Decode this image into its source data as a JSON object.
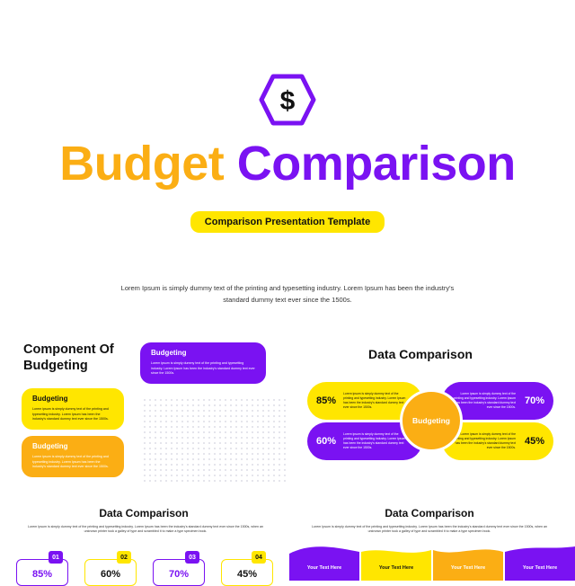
{
  "hero": {
    "icon": "dollar-hexagon-icon",
    "icon_glyph": "$",
    "title_word1": "Budget",
    "title_word2": "Comparison",
    "subtitle": "Comparison Presentation Template",
    "intro_line1": "Lorem Ipsum is simply dummy text of the printing and typesetting industry. Lorem Ipsum has been the industry's",
    "intro_line2": "standard dummy text ever since the 1500s."
  },
  "slide_component": {
    "title_line1": "Component Of",
    "title_line2": "Budgeting",
    "cards": [
      {
        "title": "Budgeting",
        "body": "Lorem ipsum is simply dummy text of the printing and typesetting industry. Lorem Ipsum has been the industry's standard dummy text ever since the 1500s."
      },
      {
        "title": "Budgeting",
        "body": "Lorem ipsum is simply dummy text of the printing and typesetting industry. Lorem Ipsum has been the industry's standard dummy text ever since the 1500s."
      },
      {
        "title": "Budgeting",
        "body": "Lorem ipsum is simply dummy text of the printing and typesetting industry. Lorem Ipsum has been the industry's standard dummy text ever since the 1500s."
      }
    ]
  },
  "slide_data_comparison": {
    "title": "Data Comparison",
    "center": "Budgeting",
    "items": [
      {
        "percent": "85%",
        "text": "Lorem ipsum is simply dummy text of the printing and typesetting industry. Lorem Ipsum has been the industry's standard dummy text ever since the 1500s."
      },
      {
        "percent": "60%",
        "text": "Lorem ipsum is simply dummy text of the printing and typesetting industry. Lorem Ipsum has been the industry's standard dummy text ever since the 1500s."
      },
      {
        "percent": "70%",
        "text": "Lorem ipsum is simply dummy text of the printing and typesetting industry. Lorem Ipsum has been the industry's standard dummy text ever since the 1500s."
      },
      {
        "percent": "45%",
        "text": "Lorem ipsum is simply dummy text of the printing and typesetting industry. Lorem Ipsum has been the industry's standard dummy text ever since the 1500s."
      }
    ]
  },
  "slide_steps": {
    "title": "Data Comparison",
    "desc": "Lorem Ipsum is simply dummy text of the printing and typesetting industry. Lorem Ipsum has been the industry's standard dummy text ever since the 1500s, when an unknown printer took a galley of type and scrambled it to make a type specimen book.",
    "steps": [
      {
        "num": "01",
        "percent": "85%"
      },
      {
        "num": "02",
        "percent": "60%"
      },
      {
        "num": "03",
        "percent": "70%"
      },
      {
        "num": "04",
        "percent": "45%"
      }
    ]
  },
  "slide_waves": {
    "title": "Data Comparison",
    "desc": "Lorem Ipsum is simply dummy text of the printing and typesetting industry. Lorem Ipsum has been the industry's standard dummy text ever since the 1500s, when an unknown printer took a galley of type and scrambled it to make a type specimen book.",
    "labels": [
      "Your Text Here",
      "Your Text Here",
      "Your Text Here",
      "Your Text Here"
    ]
  },
  "colors": {
    "purple": "#7a12f2",
    "orange": "#fbae14",
    "yellow": "#ffe600"
  }
}
